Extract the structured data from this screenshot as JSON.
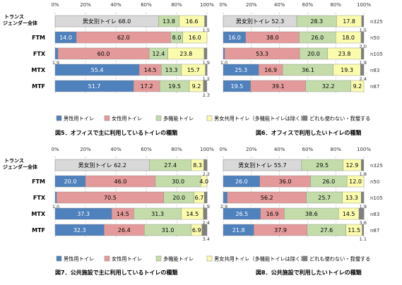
{
  "legend": {
    "items": [
      {
        "label": "男性用トイレ",
        "color": "#4f81bd"
      },
      {
        "label": "女性用トイレ",
        "color": "#e49a9a"
      },
      {
        "label": "多機能トイレ",
        "color": "#c3dcaa"
      },
      {
        "label": "男女共用トイレ（多機能トイレは除く）",
        "color": "#fbfbae"
      },
      {
        "label": "どれも使わない・我慢する",
        "color": "#7f7f7f"
      }
    ],
    "single_color": "#d9d9d9"
  },
  "chart_data": [
    {
      "type": "bar",
      "title": "図5．オフィスで主に利用しているトイレの種類",
      "x_ticks": [
        "0%",
        "20%",
        "40%",
        "60%",
        "80%",
        "100%"
      ],
      "xlim": [
        0,
        100
      ],
      "categories": [
        "トランスジェンダー全体",
        "FTM",
        "FTX",
        "MTX",
        "MTF"
      ],
      "category_label_lines": [
        [
          "トランス",
          "ジェンダー全体"
        ],
        [
          "FTM"
        ],
        [
          "FTX"
        ],
        [
          "MTX"
        ],
        [
          "MTF"
        ]
      ],
      "single": {
        "label": "男女別トイレ",
        "value": 68.0,
        "value_text": "68.0"
      },
      "series": [
        {
          "values": [
            null,
            14.0,
            1.9,
            55.4,
            51.7
          ]
        },
        {
          "values": [
            null,
            62.0,
            60.0,
            14.5,
            17.2
          ]
        },
        {
          "values": [
            13.8,
            8.0,
            12.4,
            13.3,
            19.5
          ]
        },
        {
          "values": [
            16.6,
            16.0,
            23.8,
            15.7,
            9.2
          ]
        },
        {
          "values": [
            1.5,
            0,
            1.9,
            1.2,
            2.3
          ]
        }
      ]
    },
    {
      "type": "bar",
      "title": "図6．オフィスで利用したいトイレの種類",
      "x_ticks": [
        "0%",
        "20%",
        "40%",
        "60%",
        "80%",
        "100%"
      ],
      "xlim": [
        0,
        100
      ],
      "categories": [
        "トランスジェンダー全体",
        "FTM",
        "FTX",
        "MTX",
        "MTF"
      ],
      "n_labels": [
        "n325",
        "n50",
        "n105",
        "n83",
        "n87"
      ],
      "single": {
        "label": "男女別トイレ",
        "value": 52.3,
        "value_text": "52.3"
      },
      "series": [
        {
          "values": [
            null,
            16.0,
            1.0,
            25.3,
            19.5
          ]
        },
        {
          "values": [
            null,
            38.0,
            53.3,
            16.9,
            39.1
          ]
        },
        {
          "values": [
            28.3,
            26.0,
            20.0,
            36.1,
            32.2
          ]
        },
        {
          "values": [
            17.8,
            18.0,
            23.8,
            19.3,
            9.2
          ]
        },
        {
          "values": [
            1.5,
            2.0,
            1.9,
            2.4,
            0
          ]
        }
      ]
    },
    {
      "type": "bar",
      "title": "図7．公共施設で主に利用しているトイレの種類",
      "x_ticks": [
        "0%",
        "20%",
        "40%",
        "60%",
        "80%",
        "100%"
      ],
      "xlim": [
        0,
        100
      ],
      "categories": [
        "トランスジェンダー全体",
        "FTM",
        "FTX",
        "MTX",
        "MTF"
      ],
      "category_label_lines": [
        [
          "トランス",
          "ジェンダー全体"
        ],
        [
          "FTM"
        ],
        [
          "FTX"
        ],
        [
          "MTX"
        ],
        [
          "MTF"
        ]
      ],
      "single": {
        "label": "男女別トイレ",
        "value": 62.2,
        "value_text": "62.2"
      },
      "series": [
        {
          "values": [
            null,
            20.0,
            1.0,
            37.3,
            32.3
          ]
        },
        {
          "values": [
            null,
            46.0,
            70.5,
            14.5,
            26.4
          ]
        },
        {
          "values": [
            27.4,
            30.0,
            20.0,
            31.3,
            31.0
          ]
        },
        {
          "values": [
            8.3,
            4.0,
            6.7,
            14.5,
            6.9
          ]
        },
        {
          "values": [
            2.2,
            0,
            1.9,
            2.4,
            3.4
          ]
        }
      ]
    },
    {
      "type": "bar",
      "title": "図8．公共施設で利用したいトイレの種類",
      "x_ticks": [
        "0%",
        "20%",
        "40%",
        "60%",
        "80%",
        "100%"
      ],
      "xlim": [
        0,
        100
      ],
      "categories": [
        "トランスジェンダー全体",
        "FTM",
        "FTX",
        "MTX",
        "MTF"
      ],
      "n_labels": [
        "n325",
        "n50",
        "n105",
        "n83",
        "n87"
      ],
      "single": {
        "label": "男女別トイレ",
        "value": 55.7,
        "value_text": "55.7"
      },
      "series": [
        {
          "values": [
            null,
            26.0,
            2.9,
            26.5,
            21.8
          ]
        },
        {
          "values": [
            null,
            36.0,
            56.2,
            16.9,
            37.9
          ]
        },
        {
          "values": [
            29.5,
            26.0,
            25.7,
            38.6,
            27.6
          ]
        },
        {
          "values": [
            12.9,
            12.0,
            13.3,
            14.5,
            11.5
          ]
        },
        {
          "values": [
            1.8,
            0,
            1.9,
            3.6,
            1.1
          ]
        }
      ]
    }
  ]
}
